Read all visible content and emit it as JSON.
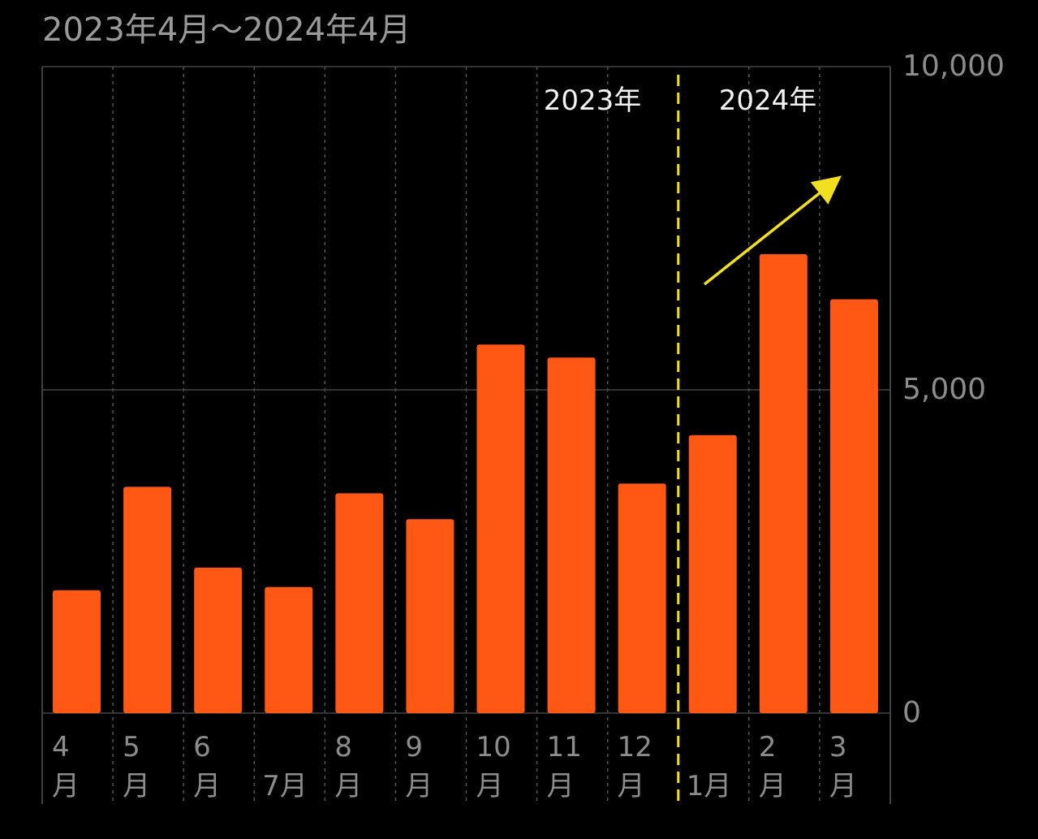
{
  "chart_data": {
    "type": "bar",
    "title": "2023年4月〜2024年4月",
    "categories": [
      "4\n月",
      "5\n月",
      "6\n月",
      "7月",
      "8\n月",
      "9\n月",
      "10\n月",
      "11\n月",
      "12\n月",
      "1月",
      "2\n月",
      "3\n月"
    ],
    "values": [
      1900,
      3500,
      2250,
      1950,
      3400,
      3000,
      5700,
      5500,
      3550,
      4300,
      7100,
      6400
    ],
    "color": "#ff5714",
    "ylim": [
      0,
      10000
    ],
    "yticks": [
      0,
      {
        "value": 5000,
        "label": "5,000"
      },
      {
        "value": 10000,
        "label": "10,000"
      }
    ],
    "grid": true,
    "annotations": [
      "2023年",
      "2024年"
    ]
  }
}
